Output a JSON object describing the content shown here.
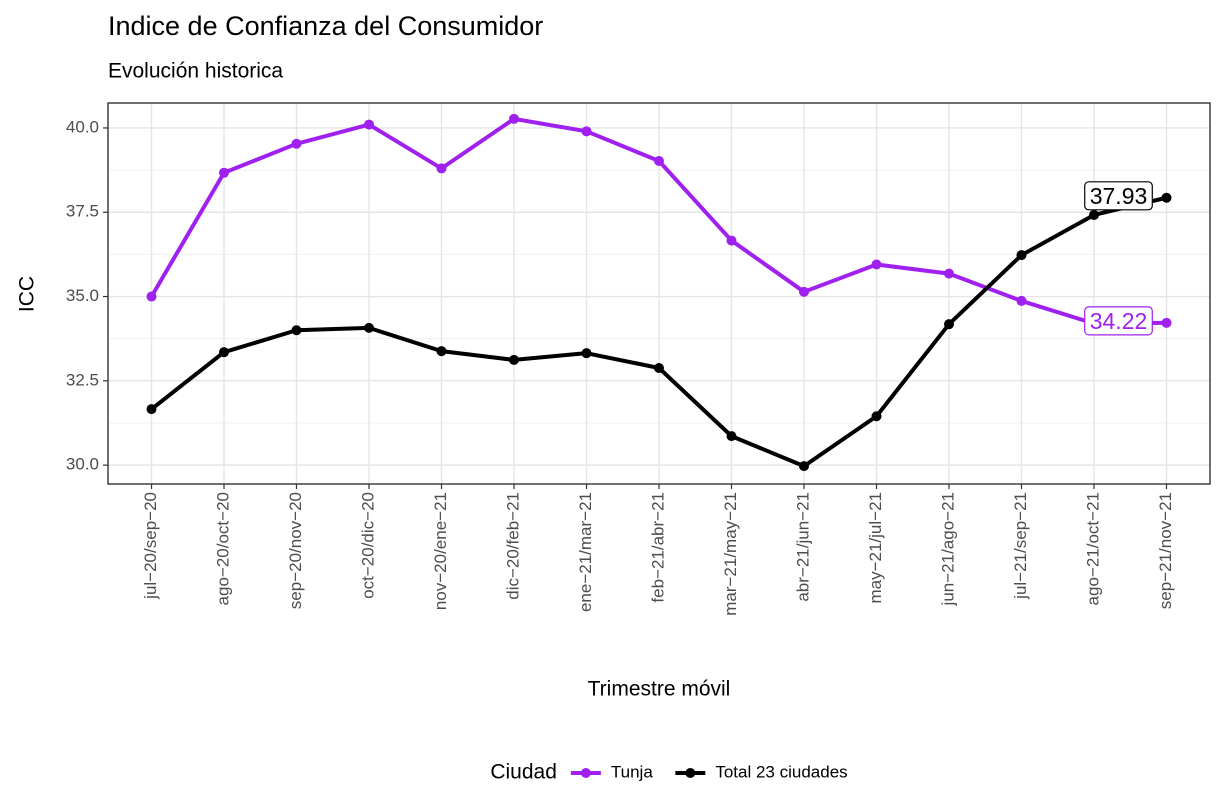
{
  "chart_data": {
    "type": "line",
    "title": "Indice de Confianza del Consumidor",
    "subtitle": "Evolución historica",
    "x_label": "Trimestre móvil",
    "y_label": "ICC",
    "legend_title": "Ciudad",
    "legend_position": "bottom",
    "grid": true,
    "end_labels": true,
    "categories": [
      "jul−20/sep−20",
      "ago−20/oct−20",
      "sep−20/nov−20",
      "oct−20/dic−20",
      "nov−20/ene−21",
      "dic−20/feb−21",
      "ene−21/mar−21",
      "feb−21/abr−21",
      "mar−21/may−21",
      "abr−21/jun−21",
      "may−21/jul−21",
      "jun−21/ago−21",
      "jul−21/sep−21",
      "ago−21/oct−21",
      "sep−21/nov−21"
    ],
    "series": [
      {
        "name": "Tunja",
        "color": "#a020f0",
        "values": [
          35.0,
          38.67,
          39.53,
          40.1,
          38.8,
          40.27,
          39.9,
          39.02,
          36.66,
          35.14,
          35.95,
          35.68,
          34.87,
          34.2,
          34.22
        ]
      },
      {
        "name": "Total 23 ciudades",
        "color": "#000000",
        "values": [
          31.66,
          33.35,
          34.0,
          34.07,
          33.38,
          33.12,
          33.32,
          32.88,
          30.86,
          29.97,
          31.45,
          34.18,
          36.23,
          37.42,
          37.93
        ]
      }
    ],
    "ylim": [
      29.44,
      40.74
    ],
    "yticks": [
      {
        "value": 30,
        "label": "30.0"
      },
      32.5,
      {
        "value": 35,
        "label": "35.0"
      },
      37.5,
      {
        "value": 40,
        "label": "40.0"
      }
    ]
  }
}
